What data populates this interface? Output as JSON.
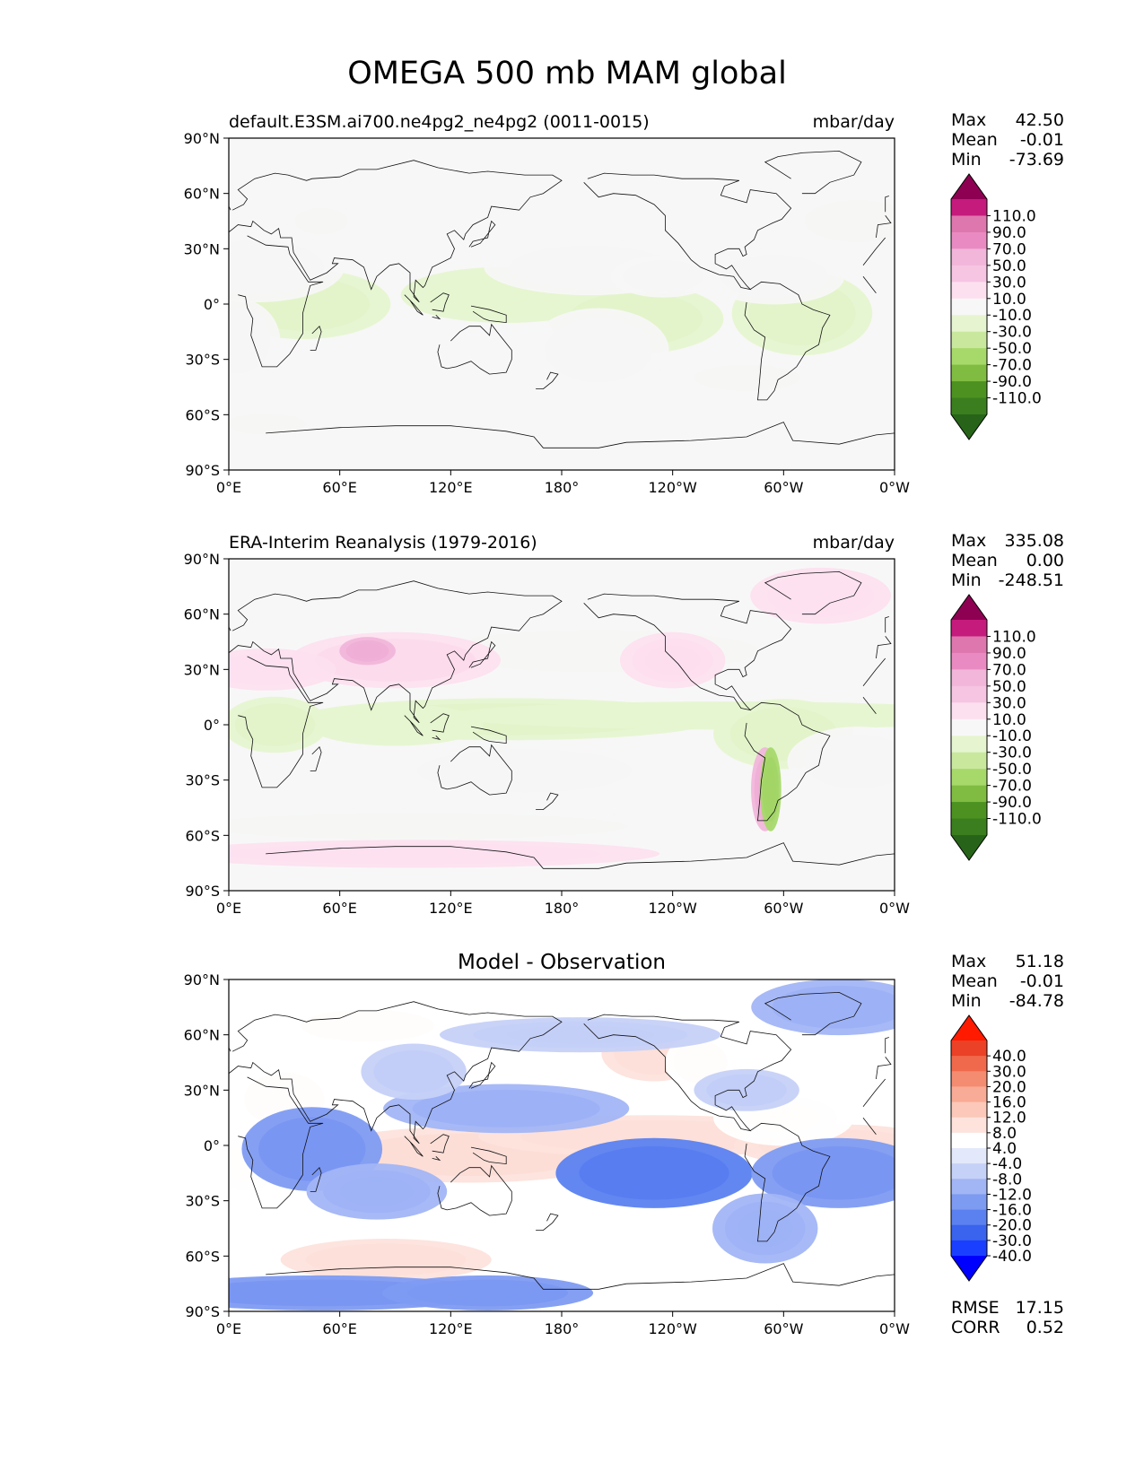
{
  "figure": {
    "title": "OMEGA 500 mb MAM global"
  },
  "axes": {
    "lat_ticks": [
      "90°N",
      "60°N",
      "30°N",
      "0°",
      "30°S",
      "60°S",
      "90°S"
    ],
    "lon_ticks": [
      "0°E",
      "60°E",
      "120°E",
      "180°",
      "120°W",
      "60°W",
      "0°W"
    ]
  },
  "colors": {
    "diverging_pg": [
      "#276419",
      "#3a7e1f",
      "#4d9221",
      "#7fbc41",
      "#a6d96a",
      "#c9e89e",
      "#e6f5d0",
      "#f7f7f7",
      "#fde0ef",
      "#f6c5e2",
      "#f1b6da",
      "#e98bc2",
      "#de77ae",
      "#c51b7d",
      "#8e0152"
    ],
    "diverging_bwr": [
      "#0000ff",
      "#1b3fff",
      "#3a63ee",
      "#5b81f0",
      "#7e9bf2",
      "#a2b5f5",
      "#c6d1f8",
      "#e3e9fb",
      "#ffffff",
      "#fde3dc",
      "#fbc8b9",
      "#f8ab96",
      "#f48c72",
      "#f0694c",
      "#ea4127",
      "#ff1a00"
    ]
  },
  "chart_data": [
    {
      "type": "heatmap",
      "name": "model",
      "title_left": "default.E3SM.ai700.ne4pg2_ne4pg2 (0011-0015)",
      "title_center": "",
      "units": "mbar/day",
      "stats": [
        {
          "label": "Max",
          "value": "42.50"
        },
        {
          "label": "Mean",
          "value": "-0.01"
        },
        {
          "label": "Min",
          "value": "-73.69"
        }
      ],
      "colorbar_ticks": [
        "110.0",
        "90.0",
        "70.0",
        "50.0",
        "30.0",
        "10.0",
        "-10.0",
        "-30.0",
        "-50.0",
        "-70.0",
        "-90.0",
        "-110.0"
      ],
      "xlim": [
        0,
        360
      ],
      "ylim": [
        -90,
        90
      ],
      "features": [
        {
          "lon": 40,
          "lat": 0,
          "rlon": 25,
          "rlat": 10,
          "v": -50
        },
        {
          "lon": 150,
          "lat": 5,
          "rlon": 30,
          "rlat": 8,
          "v": -35
        },
        {
          "lon": 220,
          "lat": -8,
          "rlon": 25,
          "rlat": 10,
          "v": -55
        },
        {
          "lon": 310,
          "lat": -5,
          "rlon": 20,
          "rlat": 12,
          "v": -45
        },
        {
          "lon": 340,
          "lat": 45,
          "rlon": 20,
          "rlat": 8,
          "v": -25
        },
        {
          "lon": 50,
          "lat": 45,
          "rlon": 10,
          "rlat": 5,
          "v": -25
        },
        {
          "lon": 280,
          "lat": -40,
          "rlon": 20,
          "rlat": 5,
          "v": -20
        },
        {
          "lon": 20,
          "lat": -65,
          "rlon": 15,
          "rlat": 4,
          "v": -20
        },
        {
          "lon": 15,
          "lat": 20,
          "rlon": 25,
          "rlat": 10,
          "v": 25
        },
        {
          "lon": 195,
          "lat": 20,
          "rlon": 30,
          "rlat": 8,
          "v": 25
        },
        {
          "lon": 295,
          "lat": 15,
          "rlon": 20,
          "rlat": 8,
          "v": 25
        },
        {
          "lon": 200,
          "lat": -25,
          "rlon": 20,
          "rlat": 12,
          "v": 20
        },
        {
          "lon": 5,
          "lat": -20,
          "rlon": 12,
          "rlat": 12,
          "v": 20
        },
        {
          "lon": 235,
          "lat": 15,
          "rlon": 15,
          "rlat": 6,
          "v": 20
        },
        {
          "lon": 110,
          "lat": 45,
          "rlon": 18,
          "rlat": 6,
          "v": 15
        }
      ]
    },
    {
      "type": "heatmap",
      "name": "observation",
      "title_left": "ERA-Interim Reanalysis (1979-2016)",
      "title_center": "",
      "units": "mbar/day",
      "stats": [
        {
          "label": "Max",
          "value": "335.08"
        },
        {
          "label": "Mean",
          "value": "0.00"
        },
        {
          "label": "Min",
          "value": "-248.51"
        }
      ],
      "colorbar_ticks": [
        "110.0",
        "90.0",
        "70.0",
        "50.0",
        "30.0",
        "10.0",
        "-10.0",
        "-30.0",
        "-50.0",
        "-70.0",
        "-90.0",
        "-110.0"
      ],
      "xlim": [
        0,
        360
      ],
      "ylim": [
        -90,
        90
      ],
      "features": [
        {
          "lon": 150,
          "lat": 3,
          "rlon": 60,
          "rlat": 6,
          "v": -45
        },
        {
          "lon": 90,
          "lat": 0,
          "rlon": 25,
          "rlat": 6,
          "v": -40
        },
        {
          "lon": 270,
          "lat": 5,
          "rlon": 80,
          "rlat": 4,
          "v": -35
        },
        {
          "lon": 25,
          "lat": 0,
          "rlon": 15,
          "rlat": 8,
          "v": -50
        },
        {
          "lon": 300,
          "lat": -5,
          "rlon": 20,
          "rlat": 10,
          "v": -55
        },
        {
          "lon": 200,
          "lat": 40,
          "rlon": 60,
          "rlat": 8,
          "v": -20
        },
        {
          "lon": 100,
          "lat": -55,
          "rlon": 80,
          "rlat": 5,
          "v": -20
        },
        {
          "lon": 90,
          "lat": 35,
          "rlon": 30,
          "rlat": 8,
          "v": 80
        },
        {
          "lon": 75,
          "lat": 40,
          "rlon": 8,
          "rlat": 4,
          "v": 120
        },
        {
          "lon": 290,
          "lat": -35,
          "rlon": 4,
          "rlat": 12,
          "v": 130
        },
        {
          "lon": 293,
          "lat": -35,
          "rlon": 3,
          "rlat": 12,
          "v": -120
        },
        {
          "lon": 240,
          "lat": 35,
          "rlon": 15,
          "rlat": 8,
          "v": 60
        },
        {
          "lon": 20,
          "lat": 30,
          "rlon": 20,
          "rlat": 6,
          "v": 40
        },
        {
          "lon": 100,
          "lat": -70,
          "rlon": 70,
          "rlat": 4,
          "v": 45
        },
        {
          "lon": 320,
          "lat": 70,
          "rlon": 20,
          "rlat": 8,
          "v": 40
        },
        {
          "lon": 160,
          "lat": -25,
          "rlon": 40,
          "rlat": 8,
          "v": 20
        },
        {
          "lon": 340,
          "lat": -20,
          "rlon": 20,
          "rlat": 10,
          "v": 20
        }
      ]
    },
    {
      "type": "heatmap",
      "name": "difference",
      "title_left": "",
      "title_center": "Model - Observation",
      "units": "",
      "stats": [
        {
          "label": "Max",
          "value": "51.18"
        },
        {
          "label": "Mean",
          "value": "-0.01"
        },
        {
          "label": "Min",
          "value": "-84.78"
        }
      ],
      "metrics": [
        {
          "label": "RMSE",
          "value": "17.15"
        },
        {
          "label": "CORR",
          "value": "0.52"
        }
      ],
      "colorbar_ticks": [
        "40.0",
        "30.0",
        "20.0",
        "16.0",
        "12.0",
        "8.0",
        "4.0",
        "-4.0",
        "-8.0",
        "-12.0",
        "-16.0",
        "-20.0",
        "-30.0",
        "-40.0"
      ],
      "xlim": [
        0,
        360
      ],
      "ylim": [
        -90,
        90
      ],
      "features": [
        {
          "lon": 130,
          "lat": -5,
          "rlon": 45,
          "rlat": 8,
          "v": 35
        },
        {
          "lon": 230,
          "lat": 5,
          "rlon": 50,
          "rlat": 6,
          "v": 30
        },
        {
          "lon": 330,
          "lat": 0,
          "rlon": 30,
          "rlat": 6,
          "v": 30
        },
        {
          "lon": 85,
          "lat": -62,
          "rlon": 30,
          "rlat": 6,
          "v": 25
        },
        {
          "lon": 75,
          "lat": 65,
          "rlon": 25,
          "rlat": 6,
          "v": 20
        },
        {
          "lon": 230,
          "lat": 50,
          "rlon": 15,
          "rlat": 8,
          "v": 25
        },
        {
          "lon": 30,
          "lat": 25,
          "rlon": 15,
          "rlat": 10,
          "v": 20
        },
        {
          "lon": 300,
          "lat": 15,
          "rlon": 20,
          "rlat": 8,
          "v": 15
        },
        {
          "lon": 255,
          "lat": 45,
          "rlon": 10,
          "rlat": 8,
          "v": 20
        },
        {
          "lon": 10,
          "lat": -10,
          "rlon": 12,
          "rlat": 10,
          "v": 15
        },
        {
          "lon": 45,
          "lat": -2,
          "rlon": 20,
          "rlat": 12,
          "v": -45
        },
        {
          "lon": 230,
          "lat": -15,
          "rlon": 28,
          "rlat": 10,
          "v": -55
        },
        {
          "lon": 330,
          "lat": -15,
          "rlon": 25,
          "rlat": 10,
          "v": -45
        },
        {
          "lon": 150,
          "lat": 20,
          "rlon": 35,
          "rlat": 7,
          "v": -30
        },
        {
          "lon": 50,
          "lat": -80,
          "rlon": 50,
          "rlat": 5,
          "v": -45
        },
        {
          "lon": 140,
          "lat": -80,
          "rlon": 30,
          "rlat": 5,
          "v": -40
        },
        {
          "lon": 330,
          "lat": 75,
          "rlon": 25,
          "rlat": 8,
          "v": -35
        },
        {
          "lon": 80,
          "lat": -25,
          "rlon": 20,
          "rlat": 8,
          "v": -25
        },
        {
          "lon": 290,
          "lat": -45,
          "rlon": 15,
          "rlat": 10,
          "v": -25
        },
        {
          "lon": 280,
          "lat": 30,
          "rlon": 15,
          "rlat": 6,
          "v": -20
        },
        {
          "lon": 100,
          "lat": 40,
          "rlon": 15,
          "rlat": 8,
          "v": -20
        },
        {
          "lon": 190,
          "lat": 60,
          "rlon": 40,
          "rlat": 5,
          "v": -15
        }
      ]
    }
  ]
}
